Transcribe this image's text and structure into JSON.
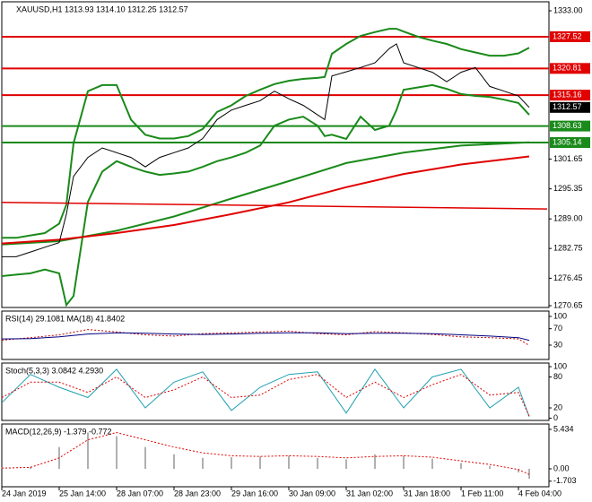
{
  "chart_data": [
    {
      "type": "line",
      "title": "XAUUSD,H1 1313.93 1314.10 1312.25 1312.57",
      "xlim": [
        0,
        152.5
      ],
      "ylim": [
        1270.27,
        1334.9
      ],
      "yticks": [
        {
          "value": 1333,
          "label": "1333.00"
        },
        1301.65,
        1295.35,
        {
          "value": 1289,
          "label": "1289.00"
        },
        1282.75,
        1276.45,
        1270.65
      ],
      "x": [
        0,
        4,
        8,
        12,
        16,
        18,
        20,
        24,
        28,
        32,
        36,
        40,
        44,
        48,
        52,
        56,
        60,
        64,
        68,
        72,
        76,
        80,
        84,
        88,
        90,
        92,
        96,
        100,
        104,
        108,
        110,
        112,
        116,
        120,
        124,
        128,
        132,
        136,
        140,
        144,
        147
      ],
      "series": [
        {
          "color": "#1a8a1a",
          "width": 2,
          "values": [
            1285,
            1285,
            1285.5,
            1286,
            1288,
            1292,
            1305,
            1316,
            1317.3,
            1317.3,
            1310,
            1306.8,
            1306,
            1306,
            1306.5,
            1308,
            1311.6,
            1313,
            1315,
            1316.3,
            1317.5,
            1318.2,
            1318.6,
            1318.8,
            1319,
            1323.9,
            1326,
            1327.7,
            1328.5,
            1329.2,
            1329.2,
            1328.6,
            1327.5,
            1326.7,
            1326,
            1324.9,
            1324.2,
            1323.5,
            1323.5,
            1324,
            1325.2
          ]
        },
        {
          "color": "#1a8a1a",
          "width": 2,
          "values": [
            1276.9,
            1277.2,
            1277.5,
            1278.3,
            1277.5,
            1270.8,
            1272.7,
            1292.6,
            1299,
            1301.2,
            1300,
            1299,
            1298.3,
            1298.6,
            1299,
            1300,
            1301.2,
            1302,
            1303,
            1304.5,
            1308.7,
            1310,
            1310.6,
            1308.7,
            1306.5,
            1306.8,
            1305.9,
            1310.6,
            1307.8,
            1308.7,
            1312,
            1316.3,
            1316.8,
            1317.3,
            1316.5,
            1315.4,
            1315,
            1314.8,
            1314.2,
            1313.5,
            1311
          ]
        },
        {
          "color": "#1a8a1a",
          "width": 2,
          "x": [
            0,
            16,
            32,
            48,
            64,
            80,
            96,
            112,
            128,
            147
          ],
          "values": [
            1283.6,
            1284.3,
            1286.5,
            1289.5,
            1293.3,
            1297,
            1300.8,
            1303,
            1304.5,
            1305.2
          ]
        },
        {
          "color": "#e00000",
          "width": 2,
          "x": [
            0,
            16,
            32,
            48,
            64,
            80,
            96,
            112,
            128,
            147
          ],
          "values": [
            1283.8,
            1284.6,
            1286,
            1287.7,
            1290,
            1292.5,
            1295.7,
            1298.5,
            1300.5,
            1302.2
          ]
        },
        {
          "color": "#e00000",
          "width": 1.5,
          "x": [
            0,
            152
          ],
          "values": [
            1292.5,
            1291.1
          ]
        },
        {
          "color": "#000000",
          "width": 1,
          "values": [
            1281,
            1281,
            1282,
            1283,
            1284,
            1290,
            1298,
            1302,
            1304,
            1303,
            1302,
            1300,
            1302,
            1303,
            1304,
            1306,
            1310,
            1312,
            1313,
            1314,
            1316,
            1314.4,
            1313,
            1311,
            1310,
            1319.2,
            1320.1,
            1321,
            1322,
            1325,
            1326,
            1322,
            1321,
            1320,
            1318,
            1320,
            1321,
            1317,
            1316,
            1315,
            1312.57
          ]
        }
      ],
      "levels": [
        {
          "value": 1327.52,
          "color": "#e00000"
        },
        {
          "value": 1320.81,
          "color": "#e00000"
        },
        {
          "value": 1315.16,
          "color": "#e00000"
        },
        {
          "value": 1308.63,
          "color": "#1a8a1a"
        },
        {
          "value": 1305.14,
          "color": "#1a8a1a"
        }
      ],
      "last": {
        "value": 1312.57,
        "color": "#000000"
      }
    },
    {
      "type": "line",
      "title": "RSI(14) 29.1081 MA(18) 41.8402",
      "xlim": [
        0,
        152.5
      ],
      "ylim": [
        -5,
        113
      ],
      "yticks": [
        100,
        70,
        30
      ],
      "x": [
        0,
        8,
        16,
        24,
        32,
        40,
        48,
        56,
        64,
        72,
        80,
        88,
        96,
        104,
        112,
        120,
        128,
        136,
        144,
        147
      ],
      "series": [
        {
          "color": "#c00000",
          "width": 1,
          "dash": true,
          "values": [
            42,
            48,
            55,
            68,
            62,
            55,
            52,
            58,
            60,
            62,
            64,
            58,
            55,
            63,
            60,
            56,
            50,
            48,
            45,
            29.1081
          ]
        },
        {
          "color": "#000080",
          "width": 1,
          "values": [
            45,
            46,
            50,
            57,
            60,
            59,
            57,
            56,
            57,
            59,
            60,
            60,
            58,
            59,
            59,
            58,
            55,
            52,
            48,
            41.8402
          ]
        }
      ]
    },
    {
      "type": "line",
      "title": "Stoch(5,3,3) 3.0842 4.2930",
      "xlim": [
        0,
        152.5
      ],
      "ylim": [
        -4.3,
        107
      ],
      "yticks": [
        100,
        80,
        20,
        0
      ],
      "x": [
        0,
        8,
        16,
        24,
        32,
        40,
        48,
        56,
        64,
        72,
        80,
        88,
        96,
        104,
        112,
        120,
        128,
        136,
        144,
        147
      ],
      "series": [
        {
          "color": "#20a0b0",
          "width": 1,
          "values": [
            30,
            85,
            60,
            40,
            95,
            20,
            70,
            90,
            15,
            60,
            85,
            90,
            10,
            95,
            20,
            80,
            95,
            20,
            60,
            3.0842
          ]
        },
        {
          "color": "#e00000",
          "width": 1,
          "dash": true,
          "values": [
            40,
            70,
            70,
            50,
            80,
            40,
            55,
            80,
            40,
            45,
            75,
            85,
            40,
            70,
            40,
            65,
            85,
            45,
            50,
            4.293
          ]
        }
      ]
    },
    {
      "type": "line",
      "title": "MACD(12,26,9) -1.379 -0.772",
      "xlim": [
        0,
        152.5
      ],
      "ylim": [
        -2.47,
        6.17
      ],
      "yticks": [
        5.434,
        {
          "value": 0,
          "label": "0.00"
        },
        -1.703
      ],
      "x": [
        0,
        8,
        16,
        24,
        32,
        40,
        48,
        56,
        64,
        72,
        80,
        88,
        96,
        104,
        112,
        120,
        128,
        136,
        144,
        147
      ],
      "series": [
        {
          "type": "bar",
          "color": "#b0b0b0",
          "values": [
            0.2,
            0.3,
            3,
            5,
            4.5,
            3,
            2,
            1.5,
            1.6,
            1.7,
            1.8,
            1.5,
            1.3,
            2,
            1.8,
            1.4,
            0.8,
            0.4,
            -0.5,
            -1.379
          ]
        },
        {
          "color": "#e00000",
          "width": 1,
          "dash": true,
          "values": [
            0.1,
            0.2,
            1.5,
            4,
            5,
            4,
            3,
            2.2,
            1.8,
            1.7,
            1.8,
            1.7,
            1.5,
            1.7,
            1.8,
            1.6,
            1.1,
            0.6,
            -0.1,
            -0.772
          ]
        }
      ],
      "xticks": [
        {
          "value": 0,
          "label": "24 Jan 2019"
        },
        {
          "value": 16,
          "label": "25 Jan 14:00"
        },
        {
          "value": 32,
          "label": "28 Jan 07:00"
        },
        {
          "value": 48,
          "label": "28 Jan 23:00"
        },
        {
          "value": 64,
          "label": "29 Jan 16:00"
        },
        {
          "value": 80,
          "label": "30 Jan 09:00"
        },
        {
          "value": 96,
          "label": "31 Jan 02:00"
        },
        {
          "value": 112,
          "label": "31 Jan 18:00"
        },
        {
          "value": 128,
          "label": "1 Feb 11:00"
        },
        {
          "value": 144,
          "label": "4 Feb 04:00"
        }
      ]
    }
  ]
}
